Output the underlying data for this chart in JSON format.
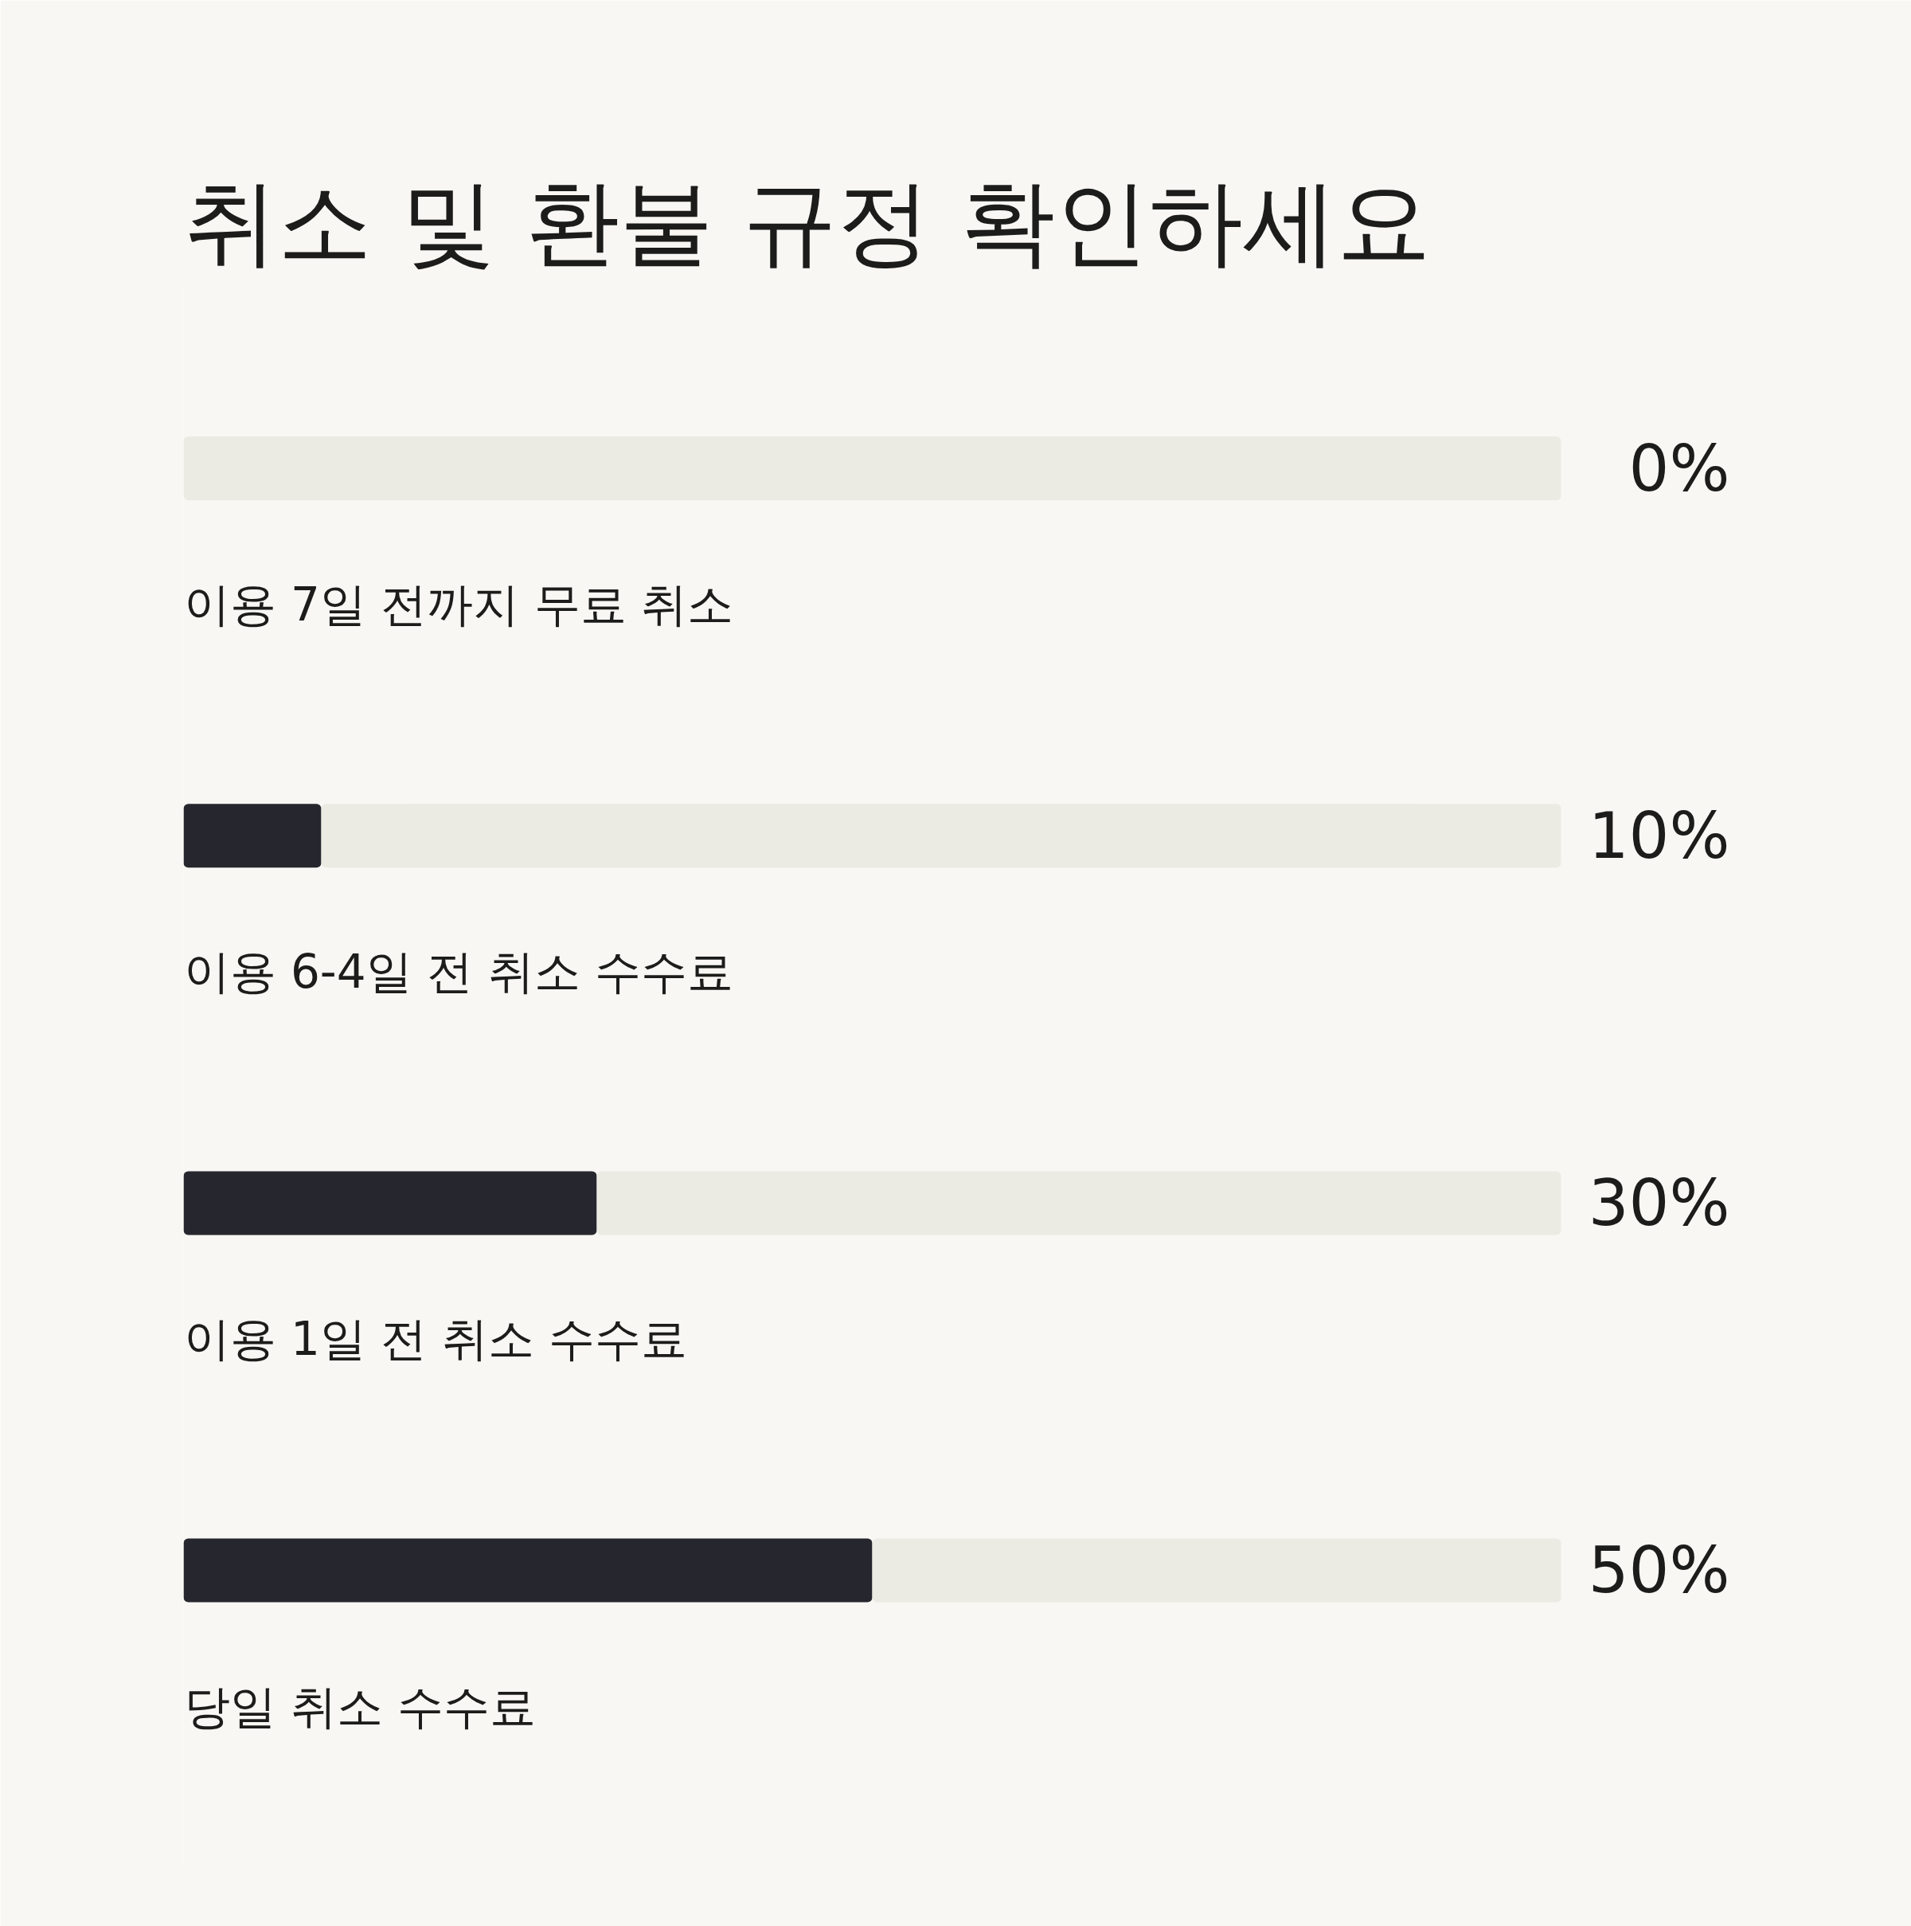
{
  "chart_data": {
    "type": "bar",
    "title": "취소 및 환불 규정 확인하세요",
    "orientation": "horizontal",
    "stacked": true,
    "categories": [
      "이용 7일 전까지 무료 취소",
      "이용 6-4일 전 취소 수수료",
      "이용 1일 전 취소 수수료",
      "당일 취소 수수료"
    ],
    "series": [
      {
        "color": "#26272e",
        "values": [
          0,
          10,
          30,
          50
        ],
        "value_labels": [
          "0%",
          "10%",
          "30%",
          "50%"
        ]
      },
      {
        "color": "#ebebe3",
        "values": [
          100,
          90,
          70,
          50
        ]
      }
    ],
    "tick_labels": false,
    "grid": false
  }
}
